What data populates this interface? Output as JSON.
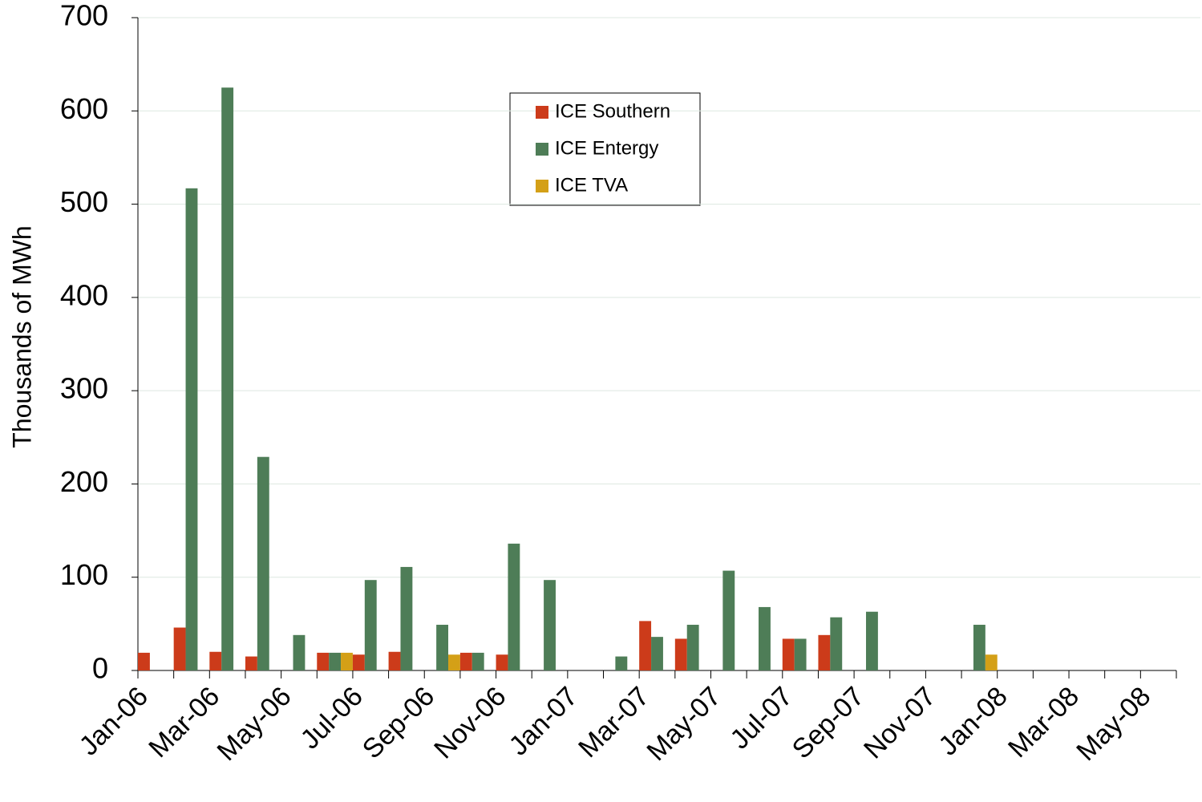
{
  "chart_data": {
    "type": "bar",
    "y_label": "Thousands of MWh",
    "categories": [
      "Jan-06",
      null,
      "Mar-06",
      null,
      "May-06",
      null,
      "Jul-06",
      null,
      "Sep-06",
      null,
      "Nov-06",
      null,
      "Jan-07",
      null,
      "Mar-07",
      null,
      "May-07",
      null,
      "Jul-07",
      null,
      "Sep-07",
      null,
      "Nov-07",
      null,
      "Jan-08",
      null,
      "Mar-08",
      null,
      "May-08"
    ],
    "series": [
      {
        "name": "ICE Southern",
        "color": "#cc3b1a",
        "values": [
          19,
          46,
          20,
          15,
          null,
          19,
          17,
          20,
          null,
          19,
          17,
          null,
          null,
          null,
          53,
          34,
          null,
          null,
          34,
          38,
          null,
          null,
          null,
          null,
          null,
          null,
          null,
          null,
          null
        ]
      },
      {
        "name": "ICE Entergy",
        "color": "#4e7d57",
        "values": [
          null,
          517,
          625,
          229,
          38,
          19,
          97,
          111,
          49,
          19,
          136,
          97,
          null,
          15,
          36,
          49,
          107,
          68,
          34,
          57,
          63,
          null,
          null,
          49,
          null,
          null,
          null,
          null,
          null
        ]
      },
      {
        "name": "ICE TVA",
        "color": "#d4a017",
        "values": [
          null,
          null,
          null,
          null,
          null,
          19,
          null,
          null,
          17,
          null,
          null,
          null,
          null,
          null,
          null,
          null,
          null,
          null,
          null,
          null,
          null,
          null,
          null,
          17,
          null,
          null,
          null,
          null,
          null
        ]
      }
    ],
    "ylim": [
      0,
      700
    ],
    "yticks": [
      0,
      100,
      200,
      300,
      400,
      500,
      600,
      700
    ],
    "grid": true
  }
}
